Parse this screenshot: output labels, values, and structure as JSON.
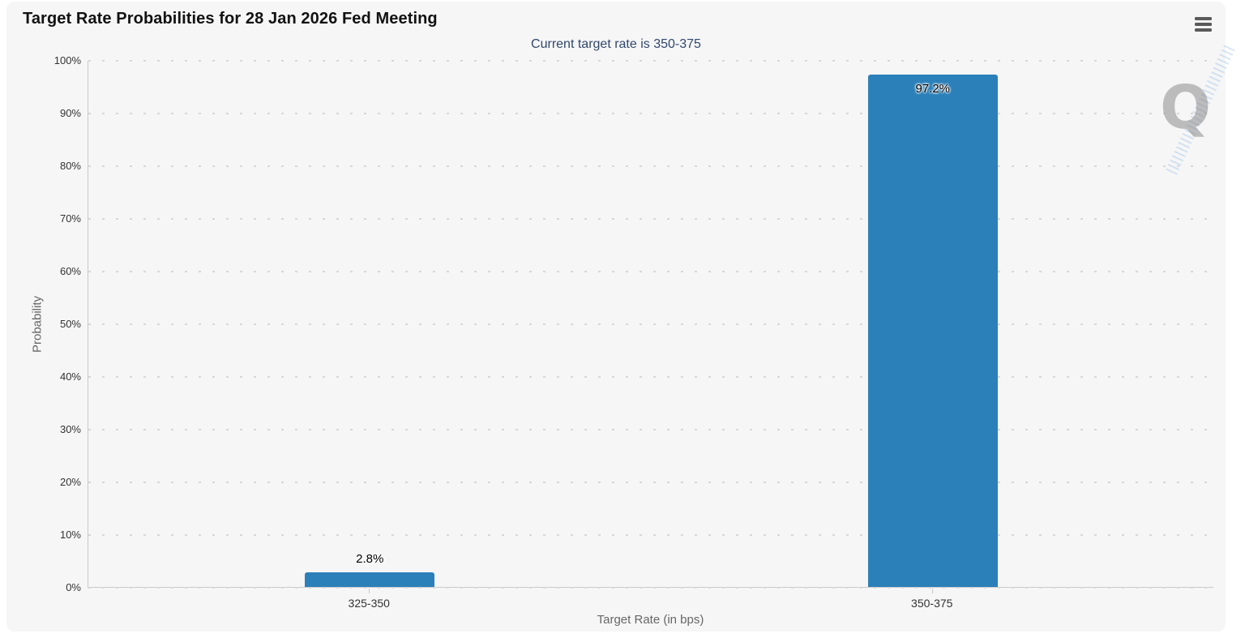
{
  "header": {
    "title": "Target Rate Probabilities for 28 Jan 2026 Fed Meeting",
    "subtitle": "Current target rate is 350-375"
  },
  "menu": {
    "icon": "hamburger-icon"
  },
  "watermark": {
    "letter": "Q"
  },
  "chart_data": {
    "type": "bar",
    "title": "Target Rate Probabilities for 28 Jan 2026 Fed Meeting",
    "subtitle": "Current target rate is 350-375",
    "categories": [
      "325-350",
      "350-375"
    ],
    "values": [
      2.8,
      97.2
    ],
    "data_labels": [
      "2.8%",
      "97.2%"
    ],
    "xlabel": "Target Rate (in bps)",
    "ylabel": "Probability",
    "ylim": [
      0,
      100
    ],
    "ytick_step": 10,
    "ytick_suffix": "%",
    "grid": "dotted-horizontal",
    "legend": "none",
    "bar_color": "#2b80b9",
    "background_color": "#f6f6f7",
    "subtitle_color": "#32486b"
  }
}
